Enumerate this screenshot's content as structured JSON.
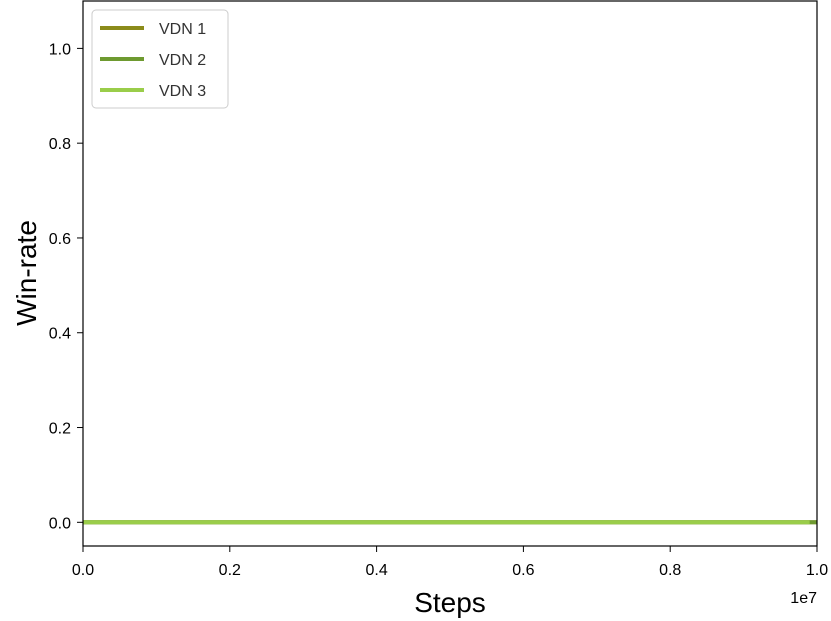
{
  "chart_data": {
    "type": "line",
    "title": "",
    "xlabel": "Steps",
    "ylabel": "Win-rate",
    "x_offset_label": "1e7",
    "xlim": [
      0.0,
      1.0
    ],
    "ylim": [
      -0.05,
      1.1
    ],
    "x_ticks": [
      0.0,
      0.2,
      0.4,
      0.6,
      0.8,
      1.0
    ],
    "x_tick_labels": [
      "0.0",
      "0.2",
      "0.4",
      "0.6",
      "0.8",
      "1.0"
    ],
    "y_ticks": [
      0.0,
      0.2,
      0.4,
      0.6,
      0.8,
      1.0
    ],
    "y_tick_labels": [
      "0.0",
      "0.2",
      "0.4",
      "0.6",
      "0.8",
      "1.0"
    ],
    "grid": false,
    "legend_position": "top-left",
    "series": [
      {
        "name": "VDN 1",
        "color": "#8b8b1a",
        "x": [
          0.0,
          0.2,
          0.4,
          0.6,
          0.8,
          1.0
        ],
        "y": [
          0.0,
          0.0,
          0.0,
          0.0,
          0.0,
          0.0
        ]
      },
      {
        "name": "VDN 2",
        "color": "#6e9a30",
        "x": [
          0.0,
          0.2,
          0.4,
          0.6,
          0.8,
          1.0
        ],
        "y": [
          0.0,
          0.0,
          0.0,
          0.0,
          0.0,
          0.0
        ]
      },
      {
        "name": "VDN 3",
        "color": "#9acd4a",
        "x": [
          0.0,
          0.2,
          0.4,
          0.6,
          0.8,
          0.99
        ],
        "y": [
          0.0,
          0.0,
          0.0,
          0.0,
          0.0,
          0.0
        ]
      }
    ]
  }
}
